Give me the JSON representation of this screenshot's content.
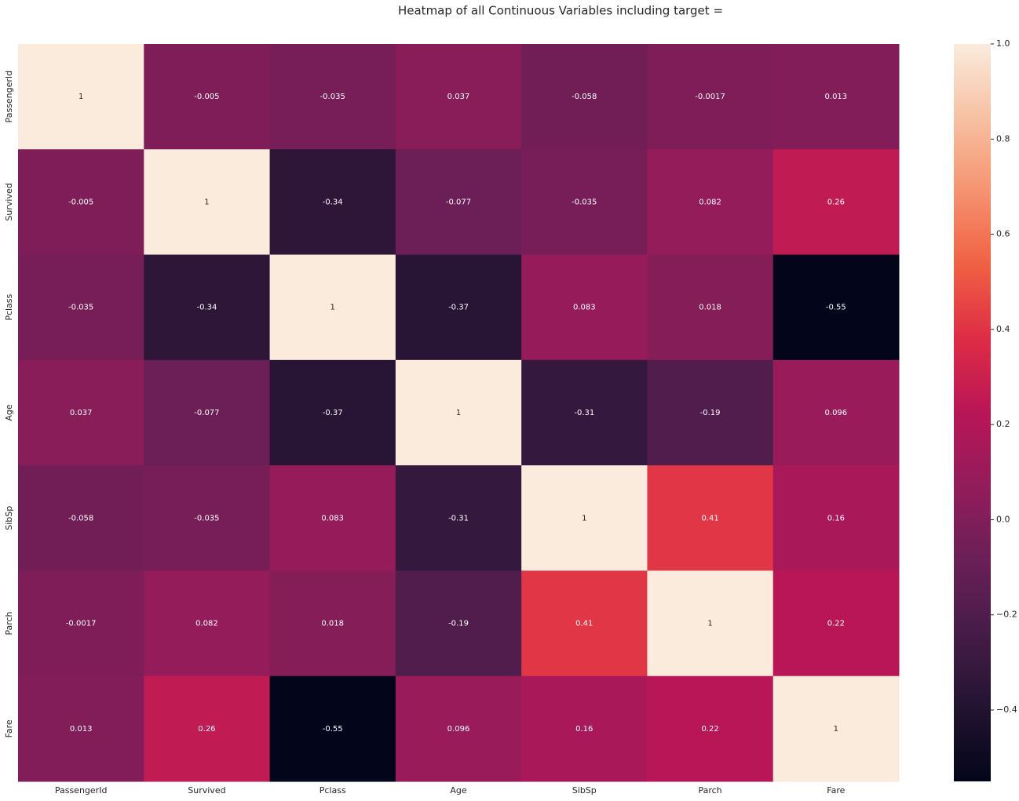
{
  "chart_data": {
    "type": "heatmap",
    "title": "Heatmap of all Continuous Variables including target =",
    "x_categories": [
      "PassengerId",
      "Survived",
      "Pclass",
      "Age",
      "SibSp",
      "Parch",
      "Fare"
    ],
    "y_categories": [
      "PassengerId",
      "Survived",
      "Pclass",
      "Age",
      "SibSp",
      "Parch",
      "Fare"
    ],
    "values": [
      [
        1,
        -0.005,
        -0.035,
        0.037,
        -0.058,
        -0.0017,
        0.013
      ],
      [
        -0.005,
        1,
        -0.34,
        -0.077,
        -0.035,
        0.082,
        0.26
      ],
      [
        -0.035,
        -0.34,
        1,
        -0.37,
        0.083,
        0.018,
        -0.55
      ],
      [
        0.037,
        -0.077,
        -0.37,
        1,
        -0.31,
        -0.19,
        0.096
      ],
      [
        -0.058,
        -0.035,
        0.083,
        -0.31,
        1,
        0.41,
        0.16
      ],
      [
        -0.0017,
        0.082,
        0.018,
        -0.19,
        0.41,
        1,
        0.22
      ],
      [
        0.013,
        0.26,
        -0.55,
        0.096,
        0.16,
        0.22,
        1
      ]
    ],
    "colormap": "rocket",
    "zlim": [
      -0.55,
      1
    ],
    "zticks": [
      {
        "value": 1.0,
        "label": "1.0"
      },
      {
        "value": 0.8,
        "label": "0.8"
      },
      {
        "value": 0.6,
        "label": "0.6"
      },
      {
        "value": 0.4,
        "label": "0.4"
      },
      {
        "value": 0.2,
        "label": "0.2"
      },
      {
        "value": 0.0,
        "label": "0.0"
      },
      {
        "value": -0.2,
        "label": "−0.2"
      },
      {
        "value": -0.4,
        "label": "−0.4"
      }
    ]
  }
}
